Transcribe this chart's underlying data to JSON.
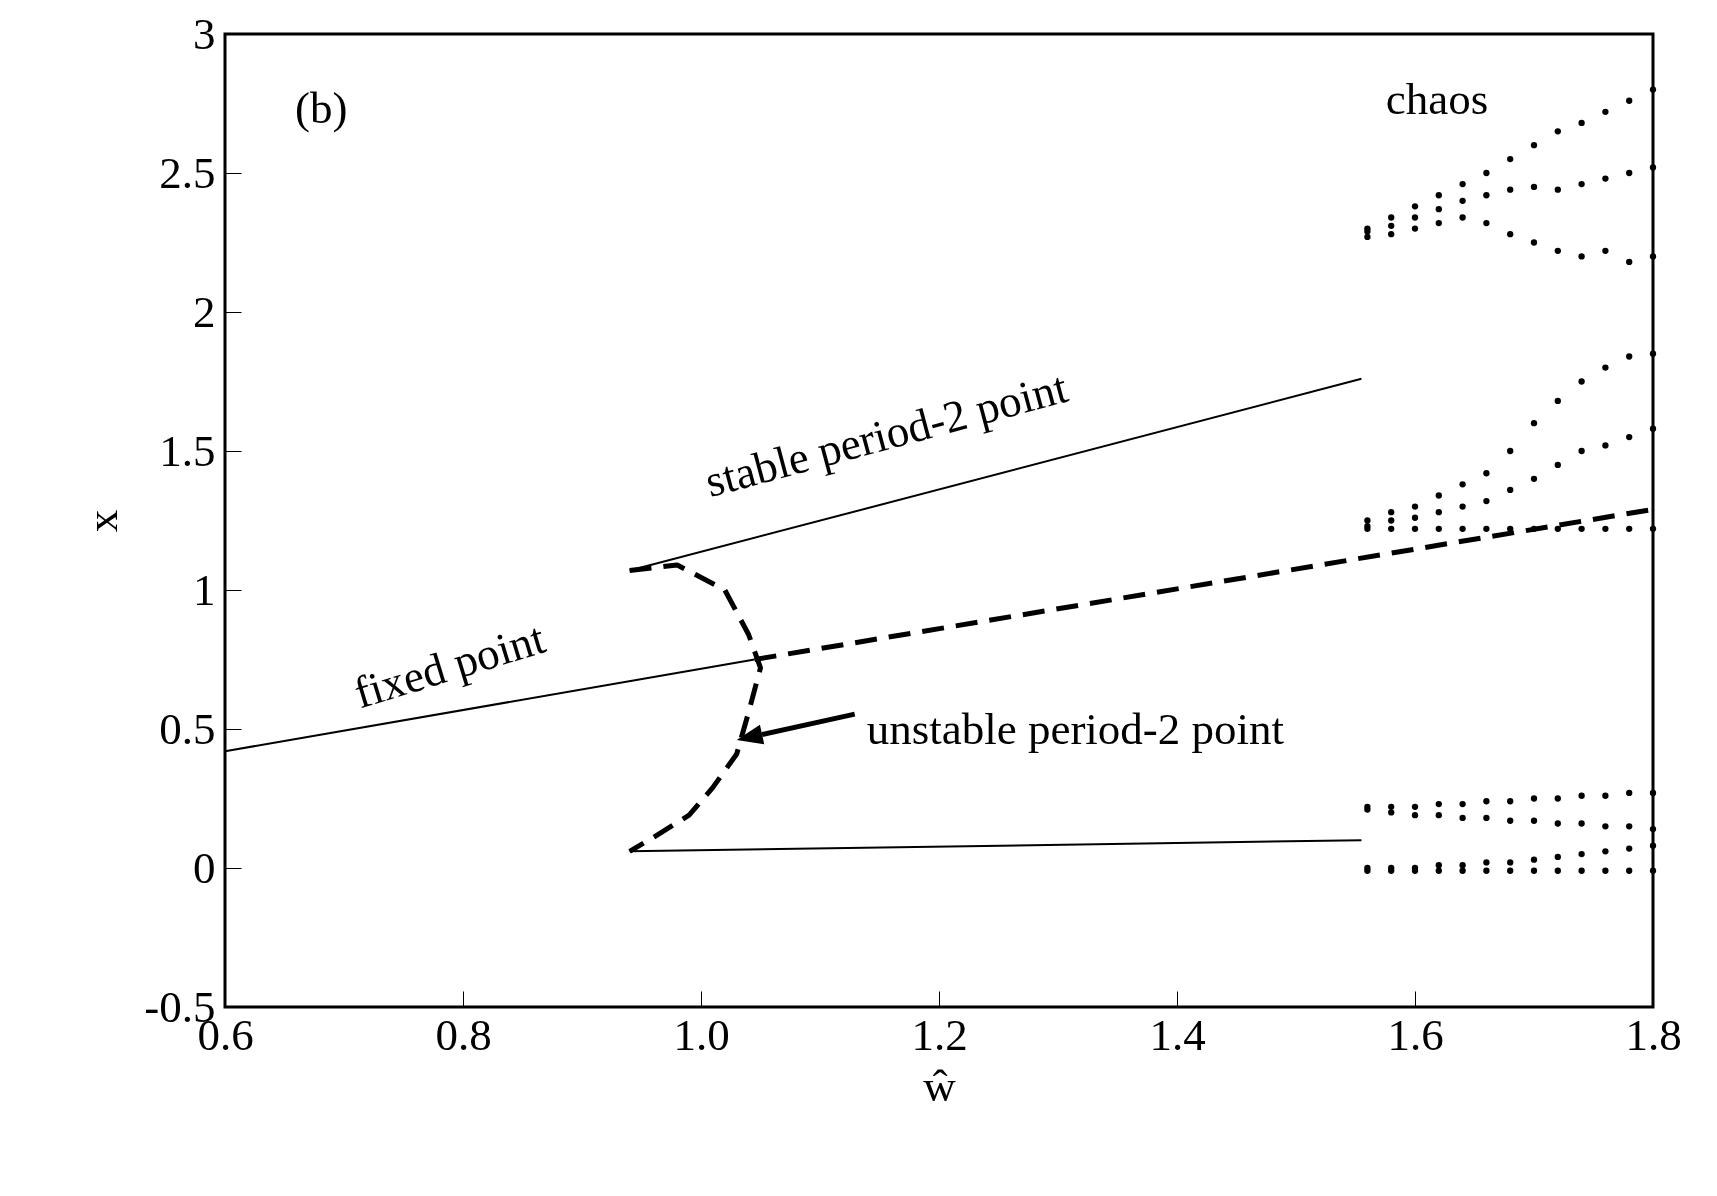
{
  "chart_data": {
    "type": "line",
    "xlabel": "ŵ",
    "ylabel": "x",
    "xlim": [
      0.6,
      1.8
    ],
    "ylim": [
      -0.5,
      3
    ],
    "xticks": [
      0.6,
      0.8,
      {
        "value": 1,
        "label": "1.0"
      },
      1.2,
      1.4,
      1.6,
      1.8
    ],
    "yticks": [
      -0.5,
      0,
      0.5,
      1,
      1.5,
      2,
      2.5,
      3
    ],
    "annotations": [
      "(b)",
      "chaos",
      {
        "text": "fixed point",
        "x": 0.8,
        "y": 0.57
      },
      {
        "text": "stable period-2 point",
        "x": 1.17,
        "y": 1.33
      },
      {
        "text": "unstable period-2 point",
        "x": 1.03,
        "y": 0.46
      }
    ],
    "series": [
      {
        "color": "#000000",
        "line_style": "solid",
        "x": [
          0.6,
          1.045
        ],
        "values": [
          0.42,
          0.75
        ]
      },
      {
        "color": "#000000",
        "line_style": "dashed",
        "x": [
          1.045,
          1.8
        ],
        "values": [
          0.75,
          1.29
        ]
      },
      {
        "type": "line",
        "color": "#000000",
        "line_style": "solid",
        "x": [
          0.94,
          1.555
        ],
        "values": [
          1.07,
          1.76
        ]
      },
      {
        "type": "line",
        "color": "#000000",
        "line_style": "solid",
        "x": [
          0.94,
          1.555
        ],
        "values": [
          0.06,
          0.1
        ]
      },
      {
        "type": "line",
        "color": "#000000",
        "line_style": "dashed",
        "x": [
          0.94,
          0.98,
          1.02,
          1.04,
          1.05,
          1.04,
          1.03,
          1.01,
          0.99,
          0.96,
          0.94
        ],
        "values": [
          1.07,
          1.09,
          1.0,
          0.84,
          0.72,
          0.56,
          0.41,
          0.29,
          0.19,
          0.11,
          0.06
        ]
      },
      {
        "type": "scatter",
        "color": "#000000",
        "marker": "circle",
        "x": [
          1.56,
          1.58,
          1.6,
          1.62,
          1.64,
          1.66,
          1.68,
          1.7,
          1.72,
          1.74,
          1.76,
          1.78,
          1.8,
          1.56,
          1.58,
          1.6,
          1.62,
          1.64,
          1.66,
          1.68,
          1.7,
          1.72,
          1.74,
          1.76,
          1.78,
          1.8,
          1.56,
          1.58,
          1.6,
          1.62,
          1.64,
          1.66,
          1.68,
          1.7,
          1.72,
          1.74,
          1.76,
          1.78,
          1.8,
          1.56,
          1.58,
          1.6,
          1.62,
          1.64,
          1.66,
          1.68,
          1.7,
          1.72,
          1.74,
          1.76,
          1.78,
          1.8,
          1.56,
          1.58,
          1.6,
          1.62,
          1.64,
          1.66,
          1.68,
          1.7,
          1.72,
          1.74,
          1.76,
          1.78,
          1.8,
          1.56,
          1.58,
          1.6,
          1.62,
          1.64,
          1.66,
          1.68,
          1.7,
          1.72,
          1.74,
          1.76,
          1.78,
          1.8,
          1.56,
          1.58,
          1.6,
          1.62,
          1.64,
          1.66,
          1.68,
          1.7,
          1.72,
          1.74,
          1.76,
          1.78,
          1.8,
          1.56,
          1.58,
          1.6,
          1.62,
          1.64,
          1.66,
          1.68,
          1.7,
          1.72,
          1.74,
          1.76,
          1.78,
          1.8,
          1.56,
          1.58,
          1.6,
          1.62,
          1.64,
          1.66,
          1.68,
          1.7,
          1.72,
          1.74,
          1.76,
          1.78,
          1.8,
          1.56,
          1.58,
          1.6,
          1.62,
          1.64,
          1.66,
          1.68,
          1.7,
          1.72,
          1.74,
          1.76,
          1.78,
          1.8
        ],
        "values": [
          2.27,
          2.28,
          2.3,
          2.32,
          2.34,
          2.32,
          2.28,
          2.25,
          2.22,
          2.2,
          2.22,
          2.18,
          2.2,
          2.3,
          2.34,
          2.38,
          2.42,
          2.46,
          2.5,
          2.55,
          2.6,
          2.65,
          2.68,
          2.72,
          2.76,
          2.8,
          2.29,
          2.31,
          2.34,
          2.37,
          2.4,
          2.42,
          2.44,
          2.45,
          2.44,
          2.46,
          2.48,
          2.5,
          2.52,
          1.22,
          1.22,
          1.22,
          1.22,
          1.22,
          1.22,
          1.22,
          1.22,
          1.22,
          1.22,
          1.22,
          1.22,
          1.22,
          1.25,
          1.28,
          1.3,
          1.34,
          1.38,
          1.42,
          1.5,
          1.6,
          1.68,
          1.75,
          1.8,
          1.84,
          1.85,
          1.23,
          1.25,
          1.26,
          1.28,
          1.3,
          1.32,
          1.36,
          1.4,
          1.45,
          1.5,
          1.52,
          1.55,
          1.58,
          0.22,
          0.22,
          0.22,
          0.23,
          0.23,
          0.24,
          0.24,
          0.25,
          0.25,
          0.26,
          0.26,
          0.27,
          0.27,
          0.21,
          0.2,
          0.19,
          0.19,
          0.18,
          0.18,
          0.17,
          0.17,
          0.16,
          0.16,
          0.15,
          0.15,
          0.14,
          0,
          0,
          0,
          0.01,
          0.01,
          0.02,
          0.02,
          0.03,
          0.04,
          0.05,
          0.06,
          0.07,
          0.08,
          -0.01,
          -0.01,
          -0.01,
          -0.01,
          -0.01,
          -0.01,
          -0.01,
          -0.01,
          -0.01,
          -0.01,
          -0.01,
          -0.01,
          -0.01
        ]
      }
    ]
  }
}
